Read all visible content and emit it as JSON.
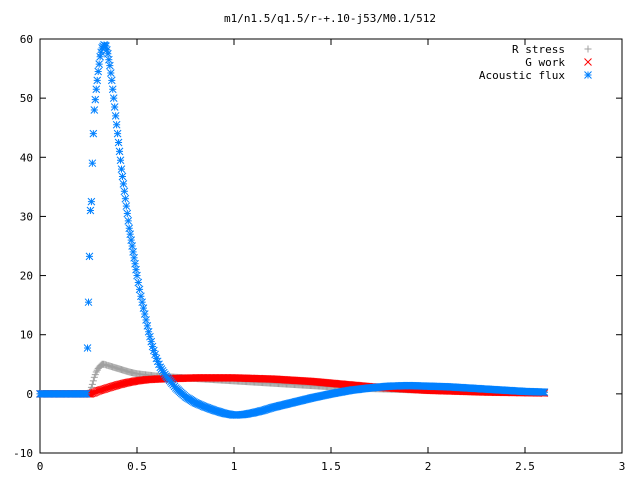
{
  "chart_data": {
    "type": "scatter",
    "title": "m1/n1.5/q1.5/r-+.10-j53/M0.1/512",
    "xlabel": "",
    "ylabel": "",
    "xlim": [
      0,
      3
    ],
    "ylim": [
      -10,
      60
    ],
    "xticks": [
      0,
      0.5,
      1,
      1.5,
      2,
      2.5,
      3
    ],
    "xtick_labels": [
      "0",
      "0.5",
      "1",
      "1.5",
      "2",
      "2.5",
      "3"
    ],
    "yticks": [
      -10,
      0,
      10,
      20,
      30,
      40,
      50,
      60
    ],
    "ytick_labels": [
      "-10",
      "0",
      "10",
      "20",
      "30",
      "40",
      "50",
      "60"
    ],
    "grid": false,
    "legend_position": "top-right",
    "series": [
      {
        "name": "R stress",
        "color": "#a0a0a0",
        "marker": "plus",
        "points": [
          [
            0,
            0
          ],
          [
            0.1,
            0
          ],
          [
            0.2,
            0
          ],
          [
            0.25,
            0
          ],
          [
            0.26,
            0.6
          ],
          [
            0.27,
            1.6
          ],
          [
            0.28,
            2.8
          ],
          [
            0.29,
            3.7
          ],
          [
            0.3,
            4.3
          ],
          [
            0.31,
            4.7
          ],
          [
            0.32,
            5.0
          ],
          [
            0.33,
            5.0
          ],
          [
            0.35,
            4.8
          ],
          [
            0.38,
            4.5
          ],
          [
            0.42,
            4.1
          ],
          [
            0.46,
            3.7
          ],
          [
            0.5,
            3.4
          ],
          [
            0.55,
            3.2
          ],
          [
            0.6,
            3.0
          ],
          [
            0.7,
            2.8
          ],
          [
            0.8,
            2.6
          ],
          [
            0.9,
            2.4
          ],
          [
            1.0,
            2.2
          ],
          [
            1.1,
            2.0
          ],
          [
            1.2,
            1.8
          ],
          [
            1.3,
            1.6
          ],
          [
            1.4,
            1.4
          ],
          [
            1.5,
            1.2
          ],
          [
            1.6,
            1.0
          ],
          [
            1.7,
            0.9
          ],
          [
            1.8,
            0.8
          ],
          [
            1.9,
            0.7
          ],
          [
            2.0,
            0.6
          ],
          [
            2.1,
            0.5
          ],
          [
            2.2,
            0.45
          ],
          [
            2.3,
            0.4
          ],
          [
            2.4,
            0.35
          ],
          [
            2.5,
            0.3
          ],
          [
            2.6,
            0.25
          ]
        ]
      },
      {
        "name": "G work",
        "color": "#ff0000",
        "marker": "cross",
        "points": [
          [
            0,
            0
          ],
          [
            0.1,
            0
          ],
          [
            0.2,
            0
          ],
          [
            0.26,
            0
          ],
          [
            0.28,
            0.2
          ],
          [
            0.3,
            0.5
          ],
          [
            0.35,
            1.0
          ],
          [
            0.4,
            1.5
          ],
          [
            0.45,
            1.9
          ],
          [
            0.5,
            2.2
          ],
          [
            0.55,
            2.4
          ],
          [
            0.6,
            2.5
          ],
          [
            0.7,
            2.6
          ],
          [
            0.8,
            2.7
          ],
          [
            0.9,
            2.7
          ],
          [
            1.0,
            2.7
          ],
          [
            1.1,
            2.6
          ],
          [
            1.2,
            2.5
          ],
          [
            1.3,
            2.3
          ],
          [
            1.4,
            2.1
          ],
          [
            1.5,
            1.8
          ],
          [
            1.6,
            1.5
          ],
          [
            1.7,
            1.2
          ],
          [
            1.8,
            1.0
          ],
          [
            1.9,
            0.8
          ],
          [
            2.0,
            0.6
          ],
          [
            2.1,
            0.5
          ],
          [
            2.2,
            0.4
          ],
          [
            2.3,
            0.3
          ],
          [
            2.4,
            0.25
          ],
          [
            2.5,
            0.2
          ],
          [
            2.6,
            0.15
          ]
        ]
      },
      {
        "name": "Acoustic flux",
        "color": "#0080ff",
        "marker": "star",
        "points": [
          [
            0,
            0
          ],
          [
            0.05,
            0
          ],
          [
            0.1,
            0
          ],
          [
            0.15,
            0
          ],
          [
            0.2,
            0
          ],
          [
            0.24,
            0
          ],
          [
            0.25,
            15.5
          ],
          [
            0.26,
            31
          ],
          [
            0.265,
            32.5
          ],
          [
            0.27,
            39
          ],
          [
            0.275,
            44
          ],
          [
            0.28,
            48
          ],
          [
            0.29,
            51.5
          ],
          [
            0.3,
            54.5
          ],
          [
            0.31,
            57
          ],
          [
            0.32,
            58.5
          ],
          [
            0.33,
            59
          ],
          [
            0.34,
            58.8
          ],
          [
            0.35,
            57.5
          ],
          [
            0.36,
            55.5
          ],
          [
            0.37,
            53
          ],
          [
            0.38,
            50
          ],
          [
            0.39,
            47
          ],
          [
            0.4,
            44
          ],
          [
            0.41,
            41
          ],
          [
            0.42,
            38
          ],
          [
            0.43,
            35.5
          ],
          [
            0.44,
            33
          ],
          [
            0.45,
            30.5
          ],
          [
            0.46,
            28
          ],
          [
            0.47,
            26
          ],
          [
            0.48,
            24
          ],
          [
            0.49,
            22
          ],
          [
            0.5,
            20
          ],
          [
            0.52,
            16.5
          ],
          [
            0.54,
            13.5
          ],
          [
            0.56,
            10.5
          ],
          [
            0.58,
            8
          ],
          [
            0.6,
            6
          ],
          [
            0.62,
            4.5
          ],
          [
            0.65,
            3
          ],
          [
            0.68,
            1.8
          ],
          [
            0.7,
            1.0
          ],
          [
            0.75,
            -0.5
          ],
          [
            0.8,
            -1.5
          ],
          [
            0.85,
            -2.2
          ],
          [
            0.9,
            -2.8
          ],
          [
            0.95,
            -3.3
          ],
          [
            1.0,
            -3.6
          ],
          [
            1.05,
            -3.5
          ],
          [
            1.1,
            -3.2
          ],
          [
            1.15,
            -2.8
          ],
          [
            1.2,
            -2.3
          ],
          [
            1.3,
            -1.5
          ],
          [
            1.4,
            -0.7
          ],
          [
            1.5,
            0
          ],
          [
            1.6,
            0.6
          ],
          [
            1.7,
            1.0
          ],
          [
            1.8,
            1.3
          ],
          [
            1.9,
            1.4
          ],
          [
            2.0,
            1.3
          ],
          [
            2.1,
            1.2
          ],
          [
            2.2,
            1.0
          ],
          [
            2.3,
            0.8
          ],
          [
            2.4,
            0.6
          ],
          [
            2.5,
            0.4
          ],
          [
            2.6,
            0.3
          ]
        ]
      }
    ]
  }
}
